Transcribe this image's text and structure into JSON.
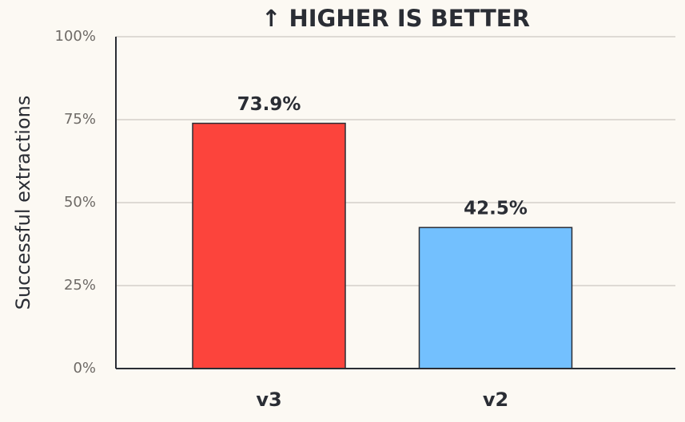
{
  "chart_data": {
    "type": "bar",
    "title": "↑ HIGHER IS BETTER",
    "y_label": "Successful extractions",
    "categories": [
      "v3",
      "v2"
    ],
    "values": [
      73.9,
      42.5
    ],
    "value_labels": [
      "73.9%",
      "42.5%"
    ],
    "colors": [
      "#fc443c",
      "#73c0fe"
    ],
    "ylim": [
      0,
      100
    ],
    "yticks": [
      {
        "value": 0,
        "label": "0%"
      },
      {
        "value": 25,
        "label": "25%"
      },
      {
        "value": 50,
        "label": "50%"
      },
      {
        "value": 75,
        "label": "75%"
      },
      {
        "value": 100,
        "label": "100%"
      }
    ],
    "grid": true
  }
}
